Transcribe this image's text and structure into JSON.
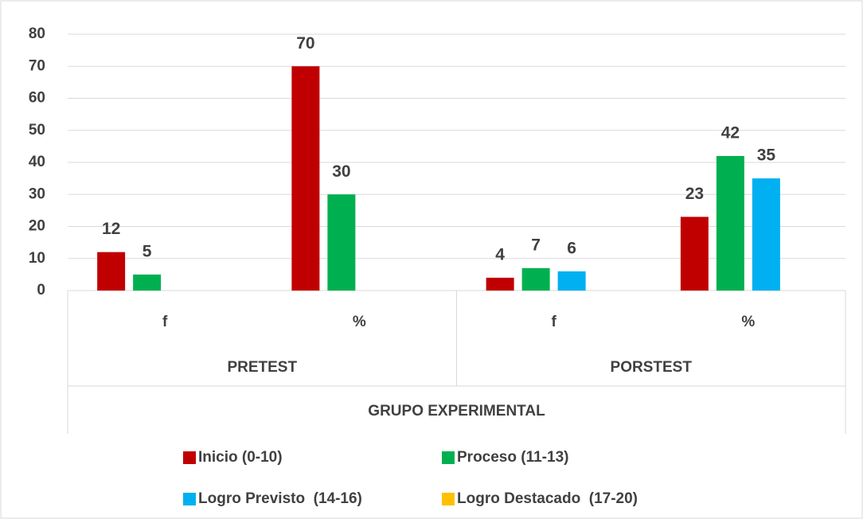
{
  "chart_data": {
    "type": "bar",
    "categories": [
      "f",
      "%",
      "f",
      "%"
    ],
    "group_labels": [
      "PRETEST",
      "PORSTEST"
    ],
    "group_title": "GRUPO EXPERIMENTAL",
    "series": [
      {
        "name": "Inicio (0-10)",
        "color": "#c00000",
        "values": [
          12,
          70,
          4,
          23
        ]
      },
      {
        "name": "Proceso (11-13)",
        "color": "#00b050",
        "values": [
          5,
          30,
          7,
          42
        ]
      },
      {
        "name": "Logro Previsto  (14-16)",
        "color": "#00b0f0",
        "values": [
          null,
          null,
          6,
          35
        ]
      },
      {
        "name": "Logro Destacado  (17-20)",
        "color": "#ffc000",
        "values": [
          null,
          null,
          null,
          null
        ]
      }
    ],
    "ylim": [
      0,
      80
    ],
    "yticks": [
      0,
      10,
      20,
      30,
      40,
      50,
      60,
      70,
      80
    ],
    "grid": true,
    "legend": "bottom"
  }
}
